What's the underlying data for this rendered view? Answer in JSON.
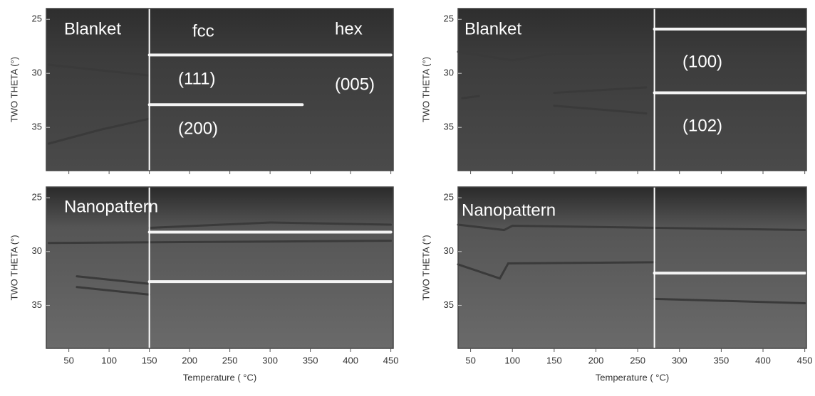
{
  "chart_data": [
    {
      "type": "line",
      "ylabel": "TWO THETA (°)",
      "xlim": [
        22,
        453
      ],
      "ylim": [
        24,
        39
      ],
      "xticks": [
        50,
        100,
        150,
        200,
        250,
        300,
        350,
        400,
        450
      ],
      "yticks": [
        25,
        30,
        35
      ],
      "divider": 150,
      "annotations": [
        "Blanket",
        "fcc",
        "hex",
        "(111)",
        "(005)",
        "(200)"
      ],
      "series": [
        {
          "color": "#3a3a3a",
          "x": [
            25,
            90,
            150
          ],
          "values": [
            36.5,
            35.2,
            34.2
          ]
        },
        {
          "color": "#3a3a3a",
          "x": [
            25,
            150
          ],
          "values": [
            29.2,
            30.2
          ]
        },
        {
          "color": "#f4f4f4",
          "x": [
            150,
            450
          ],
          "values": [
            28.3,
            28.3
          ]
        },
        {
          "color": "#f4f4f4",
          "x": [
            150,
            340
          ],
          "values": [
            32.9,
            32.9
          ]
        }
      ]
    },
    {
      "type": "line",
      "ylabel": "TWO THETA (°)",
      "xlim": [
        35,
        452
      ],
      "ylim": [
        24,
        39
      ],
      "xticks": [
        50,
        100,
        150,
        200,
        250,
        300,
        350,
        400,
        450
      ],
      "yticks": [
        25,
        30,
        35
      ],
      "divider": 270,
      "annotations": [
        "Blanket",
        "(100)",
        "(102)"
      ],
      "series": [
        {
          "color": "#3a3a3a",
          "x": [
            35,
            100,
            145,
            260
          ],
          "values": [
            28,
            28.8,
            28.2,
            28
          ]
        },
        {
          "color": "#3a3a3a",
          "x": [
            150,
            260
          ],
          "values": [
            31.8,
            31.3
          ]
        },
        {
          "color": "#3a3a3a",
          "x": [
            150,
            260
          ],
          "values": [
            33,
            33.7
          ]
        },
        {
          "color": "#3a3a3a",
          "x": [
            40,
            60
          ],
          "values": [
            32.3,
            32.1
          ]
        },
        {
          "color": "#3a3a3a",
          "x": [
            270,
            450
          ],
          "values": [
            27.8,
            27.8
          ]
        },
        {
          "color": "#f4f4f4",
          "x": [
            270,
            450
          ],
          "values": [
            25.9,
            25.9
          ]
        },
        {
          "color": "#f4f4f4",
          "x": [
            270,
            450
          ],
          "values": [
            31.8,
            31.8
          ]
        }
      ]
    },
    {
      "type": "line",
      "ylabel": "TWO THETA (°)",
      "xlabel": "Temperature ( °C)",
      "xlim": [
        22,
        453
      ],
      "ylim": [
        24,
        39
      ],
      "xticks": [
        50,
        100,
        150,
        200,
        250,
        300,
        350,
        400,
        450
      ],
      "yticks": [
        25,
        30,
        35
      ],
      "divider": 150,
      "annotations": [
        "Nanopattern"
      ],
      "series": [
        {
          "color": "#3a3a3a",
          "x": [
            25,
            450
          ],
          "values": [
            29.2,
            29
          ]
        },
        {
          "color": "#3a3a3a",
          "x": [
            60,
            150
          ],
          "values": [
            32.3,
            33
          ]
        },
        {
          "color": "#3a3a3a",
          "x": [
            60,
            150
          ],
          "values": [
            33.3,
            34
          ]
        },
        {
          "color": "#3a3a3a",
          "x": [
            150,
            300,
            450
          ],
          "values": [
            27.8,
            27.3,
            27.5
          ]
        },
        {
          "color": "#f4f4f4",
          "x": [
            150,
            450
          ],
          "values": [
            28.2,
            28.2
          ]
        },
        {
          "color": "#f4f4f4",
          "x": [
            150,
            450
          ],
          "values": [
            32.8,
            32.8
          ]
        }
      ]
    },
    {
      "type": "line",
      "ylabel": "TWO THETA (°)",
      "xlabel": "Temperature ( °C)",
      "xlim": [
        35,
        452
      ],
      "ylim": [
        24,
        39
      ],
      "xticks": [
        50,
        100,
        150,
        200,
        250,
        300,
        350,
        400,
        450
      ],
      "yticks": [
        25,
        30,
        35
      ],
      "divider": 270,
      "annotations": [
        "Nanopattern"
      ],
      "series": [
        {
          "color": "#3a3a3a",
          "x": [
            35,
            90,
            100,
            450
          ],
          "values": [
            27.5,
            28,
            27.6,
            28
          ]
        },
        {
          "color": "#3a3a3a",
          "x": [
            35,
            85,
            95,
            270
          ],
          "values": [
            31.2,
            32.5,
            31.1,
            31
          ]
        },
        {
          "color": "#3a3a3a",
          "x": [
            270,
            450
          ],
          "values": [
            34.4,
            34.8
          ]
        },
        {
          "color": "#f4f4f4",
          "x": [
            270,
            450
          ],
          "values": [
            32,
            32
          ]
        }
      ]
    }
  ]
}
